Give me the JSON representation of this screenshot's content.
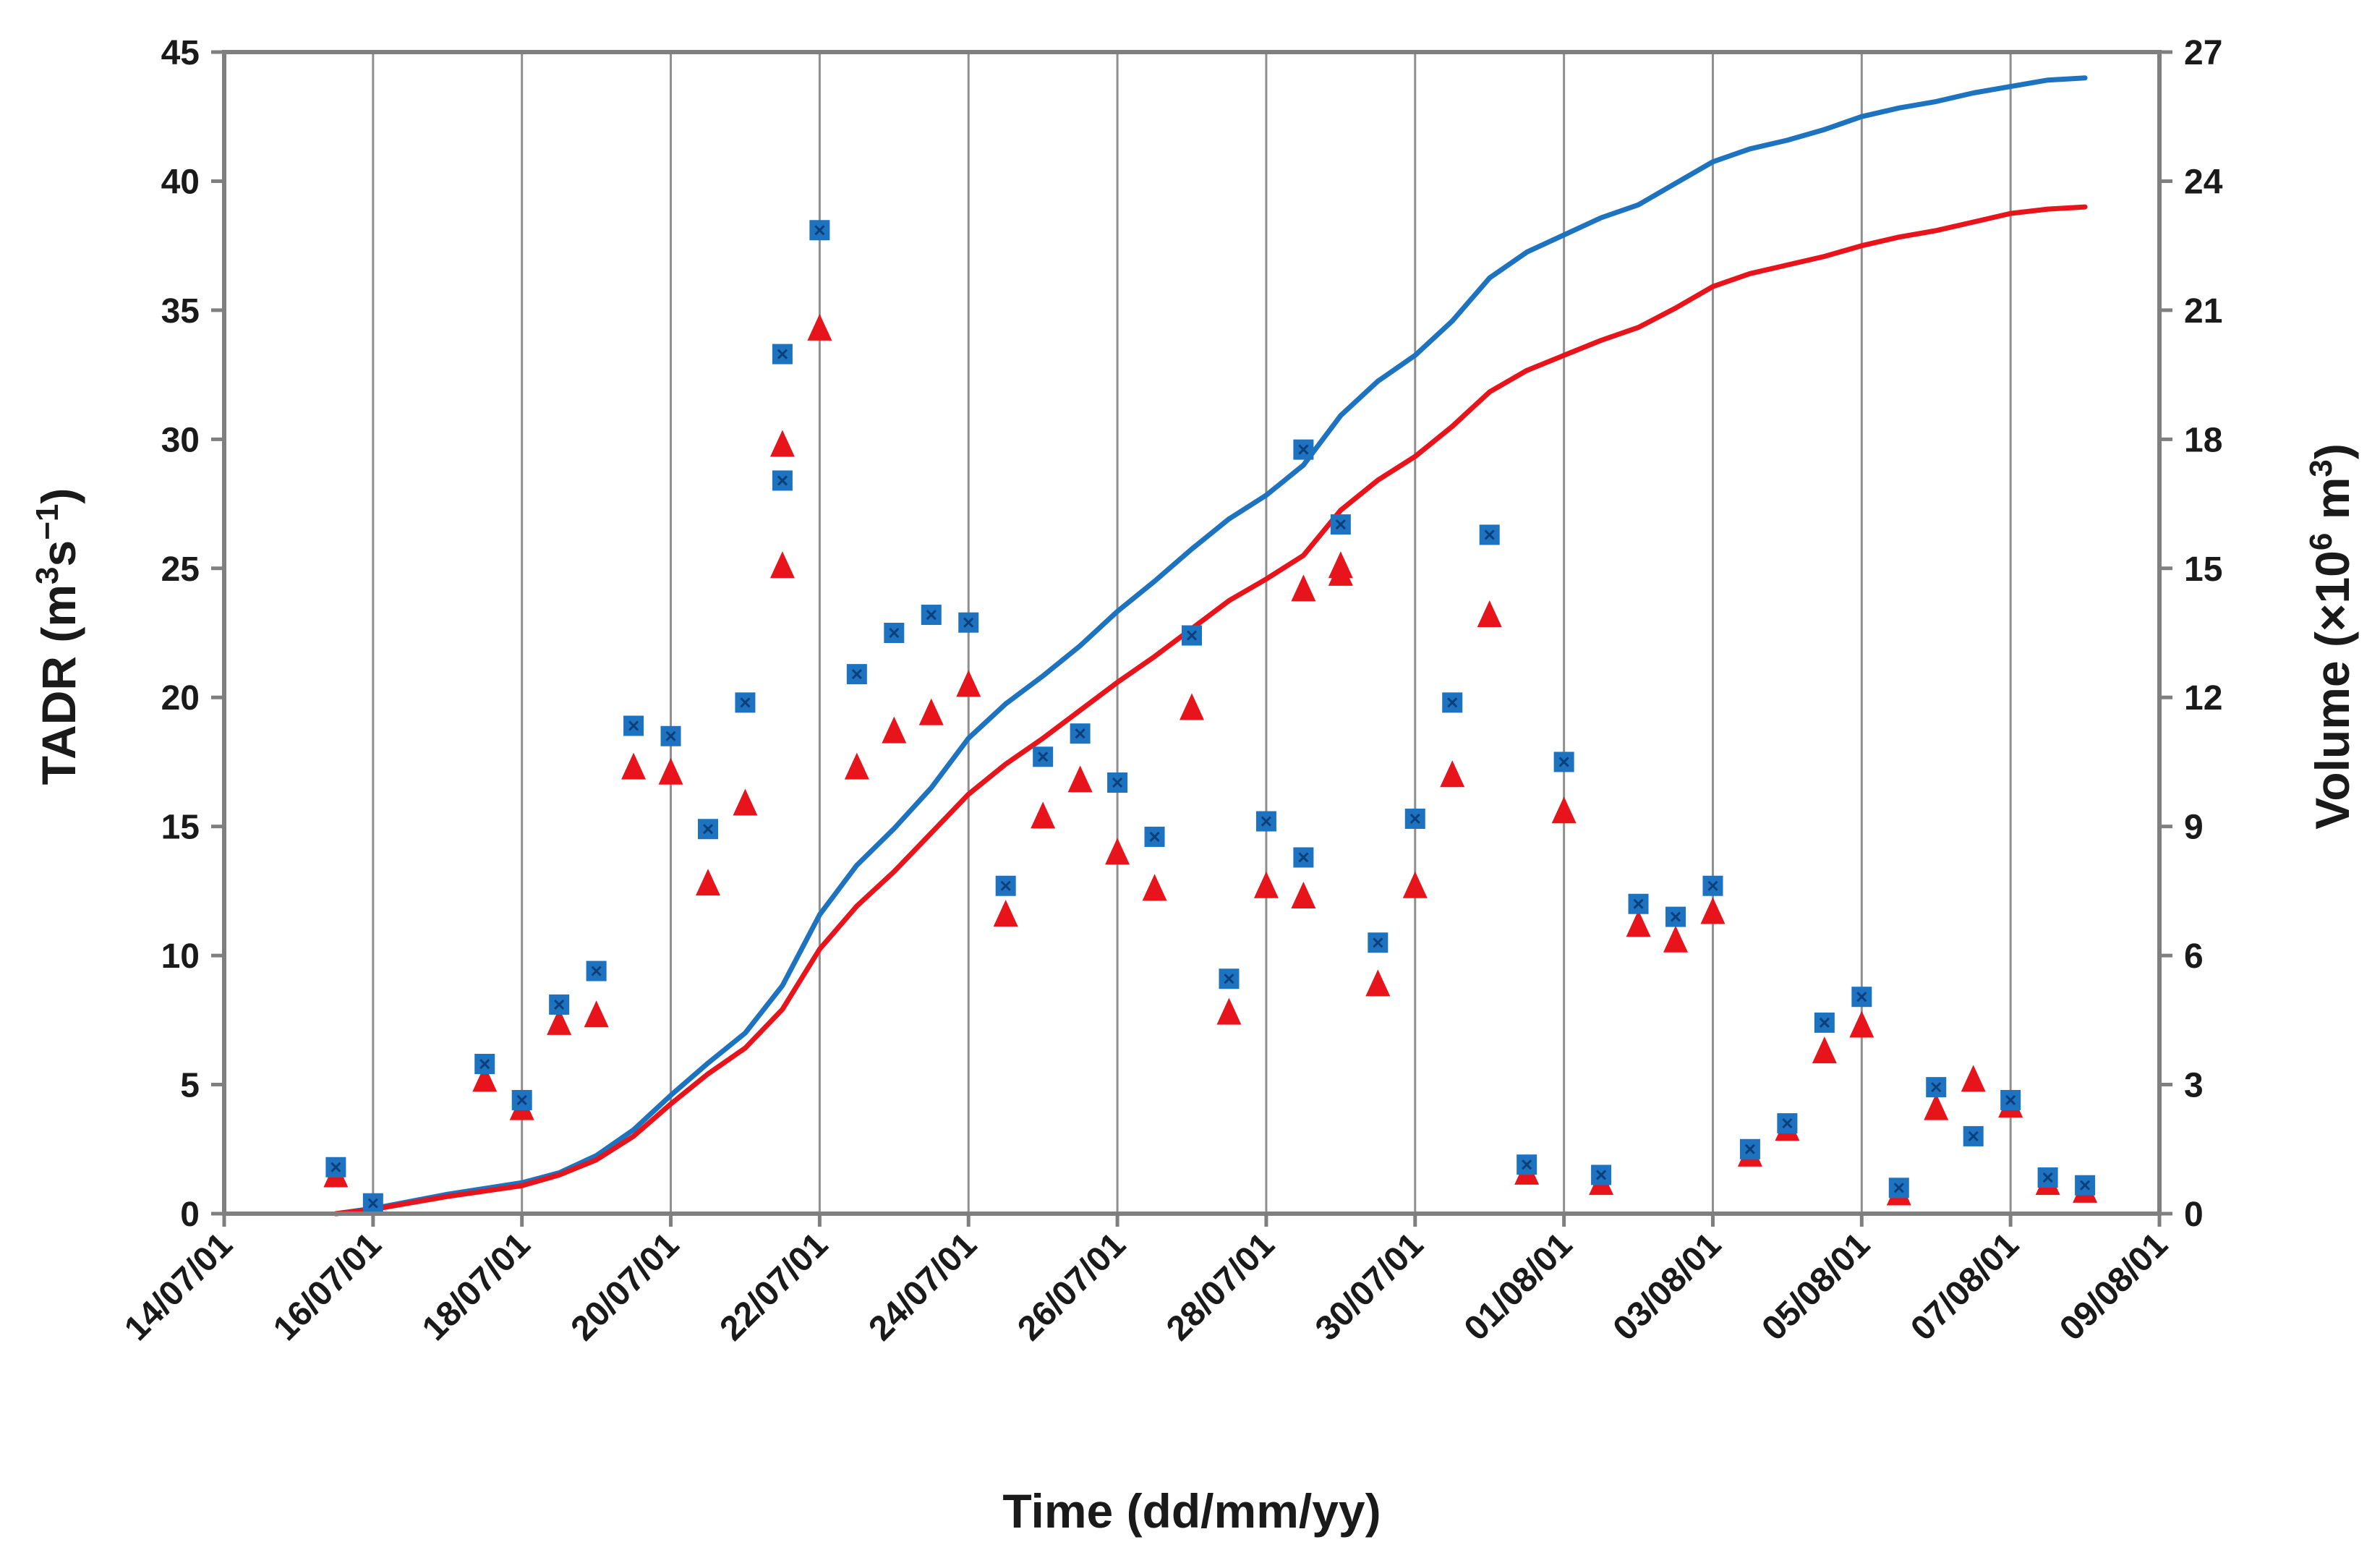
{
  "chart_data": {
    "type": "scatter+line",
    "title": "",
    "xlabel": "Time (dd/mm/yy)",
    "ylabel_left": {
      "main": "TADR (m",
      "sup1": "3",
      "mid": "s",
      "sup2": "−1",
      "end": ")"
    },
    "ylabel_right": {
      "main": "Volume (×10",
      "sup1": "6",
      "mid": " m",
      "sup2": "3",
      "end": ")"
    },
    "x_range_days": [
      0,
      26
    ],
    "x_tick_days": [
      0,
      2,
      4,
      6,
      8,
      10,
      12,
      14,
      16,
      18,
      20,
      22,
      24,
      26
    ],
    "x_tick_labels": [
      "14/07/01",
      "16/07/01",
      "18/07/01",
      "20/07/01",
      "22/07/01",
      "24/07/01",
      "26/07/01",
      "28/07/01",
      "30/07/01",
      "01/08/01",
      "03/08/01",
      "05/08/01",
      "07/08/01",
      "09/08/01"
    ],
    "y_left_range": [
      0,
      45
    ],
    "y_left_ticks": [
      0,
      5,
      10,
      15,
      20,
      25,
      30,
      35,
      40,
      45
    ],
    "y_right_range": [
      0,
      27
    ],
    "y_right_ticks": [
      0,
      3,
      6,
      9,
      12,
      15,
      18,
      21,
      24,
      27
    ],
    "grid": "vertical",
    "colors": {
      "blue": "#1e73c0",
      "red": "#e8141c",
      "axis": "#7f7f7f",
      "text": "#1a1a1a"
    },
    "series": [
      {
        "name": "TADR (blue squares)",
        "marker": "square",
        "axis": "left",
        "color": "#1e73c0",
        "x": [
          1.5,
          2.0,
          3.5,
          4.0,
          4.5,
          5.0,
          5.5,
          6.0,
          6.5,
          7.0,
          7.5,
          7.5,
          8.0,
          8.5,
          9.0,
          9.5,
          10.0,
          10.5,
          11.0,
          11.5,
          12.0,
          12.5,
          13.0,
          13.5,
          14.0,
          14.5,
          14.5,
          15.0,
          15.5,
          16.0,
          16.5,
          17.0,
          17.5,
          18.0,
          18.5,
          19.0,
          19.5,
          20.0,
          20.5,
          21.0,
          21.5,
          22.0,
          22.5,
          23.0,
          23.5,
          24.0,
          24.5,
          25.0
        ],
        "y": [
          1.8,
          0.4,
          5.8,
          4.4,
          8.1,
          9.4,
          18.9,
          18.5,
          14.9,
          19.8,
          28.4,
          33.3,
          38.1,
          20.9,
          22.5,
          23.2,
          22.9,
          12.7,
          17.7,
          18.6,
          16.7,
          14.6,
          22.4,
          9.1,
          15.2,
          13.8,
          29.6,
          26.7,
          10.5,
          15.3,
          19.8,
          26.3,
          1.9,
          17.5,
          1.5,
          12.0,
          11.5,
          12.7,
          2.5,
          3.5,
          7.4,
          8.4,
          1.0,
          4.9,
          3.0,
          4.4,
          1.4,
          1.1
        ]
      },
      {
        "name": "TADR (red triangles)",
        "marker": "triangle",
        "axis": "left",
        "color": "#e8141c",
        "x": [
          1.5,
          3.5,
          4.0,
          4.5,
          5.0,
          5.5,
          6.0,
          6.5,
          7.0,
          7.5,
          7.5,
          8.0,
          8.5,
          9.0,
          9.5,
          10.0,
          10.5,
          11.0,
          11.5,
          12.0,
          12.5,
          13.0,
          13.5,
          14.0,
          14.5,
          14.5,
          15.0,
          15.0,
          15.5,
          16.0,
          16.5,
          17.0,
          17.5,
          18.0,
          18.5,
          19.0,
          19.5,
          20.0,
          20.5,
          21.0,
          21.5,
          22.0,
          22.5,
          23.0,
          23.5,
          24.0,
          24.5,
          25.0
        ],
        "y": [
          1.5,
          5.2,
          4.1,
          7.4,
          7.7,
          17.3,
          17.1,
          12.8,
          15.9,
          25.1,
          29.8,
          34.3,
          17.3,
          18.7,
          19.4,
          20.5,
          11.6,
          15.4,
          16.8,
          14.0,
          12.6,
          19.6,
          7.8,
          12.7,
          12.3,
          24.2,
          25.1,
          24.8,
          8.9,
          12.7,
          17.0,
          23.2,
          1.6,
          15.6,
          1.2,
          11.2,
          10.6,
          11.7,
          2.3,
          3.3,
          6.3,
          7.3,
          0.8,
          4.1,
          5.2,
          4.2,
          1.2,
          0.9
        ]
      },
      {
        "name": "Volume (blue line)",
        "marker": "none",
        "axis": "right",
        "color": "#1e73c0",
        "x": [
          1.5,
          2.0,
          3.0,
          4.0,
          4.5,
          5.0,
          5.5,
          6.0,
          6.5,
          7.0,
          7.5,
          8.0,
          8.5,
          9.0,
          9.5,
          10.0,
          10.5,
          11.0,
          11.5,
          12.0,
          12.5,
          13.0,
          13.5,
          14.0,
          14.5,
          15.0,
          15.5,
          16.0,
          16.5,
          17.0,
          17.5,
          18.0,
          18.5,
          19.0,
          19.5,
          20.0,
          20.5,
          21.0,
          21.5,
          22.0,
          22.5,
          23.0,
          23.5,
          24.0,
          24.5,
          25.0
        ],
        "y": [
          0.0,
          0.12,
          0.45,
          0.72,
          0.95,
          1.35,
          1.95,
          2.75,
          3.5,
          4.2,
          5.3,
          6.95,
          8.1,
          8.95,
          9.9,
          11.05,
          11.85,
          12.5,
          13.2,
          14.0,
          14.7,
          15.45,
          16.15,
          16.7,
          17.4,
          18.55,
          19.35,
          19.95,
          20.75,
          21.75,
          22.35,
          22.75,
          23.15,
          23.45,
          23.95,
          24.45,
          24.75,
          24.95,
          25.2,
          25.5,
          25.7,
          25.85,
          26.05,
          26.2,
          26.35,
          26.4
        ]
      },
      {
        "name": "Volume (red line)",
        "marker": "none",
        "axis": "right",
        "color": "#e8141c",
        "x": [
          1.5,
          2.0,
          3.0,
          4.0,
          4.5,
          5.0,
          5.5,
          6.0,
          6.5,
          7.0,
          7.5,
          8.0,
          8.5,
          9.0,
          9.5,
          10.0,
          10.5,
          11.0,
          11.5,
          12.0,
          12.5,
          13.0,
          13.5,
          14.0,
          14.5,
          15.0,
          15.5,
          16.0,
          16.5,
          17.0,
          17.5,
          18.0,
          18.5,
          19.0,
          19.5,
          20.0,
          20.5,
          21.0,
          21.5,
          22.0,
          22.5,
          23.0,
          23.5,
          24.0,
          24.5,
          25.0
        ],
        "y": [
          0.0,
          0.1,
          0.4,
          0.65,
          0.9,
          1.25,
          1.8,
          2.55,
          3.25,
          3.85,
          4.75,
          6.15,
          7.15,
          7.95,
          8.85,
          9.75,
          10.45,
          11.05,
          11.7,
          12.35,
          12.95,
          13.6,
          14.25,
          14.75,
          15.3,
          16.35,
          17.05,
          17.6,
          18.3,
          19.1,
          19.6,
          19.95,
          20.3,
          20.6,
          21.05,
          21.55,
          21.85,
          22.05,
          22.25,
          22.5,
          22.7,
          22.85,
          23.05,
          23.25,
          23.35,
          23.4
        ]
      }
    ]
  }
}
